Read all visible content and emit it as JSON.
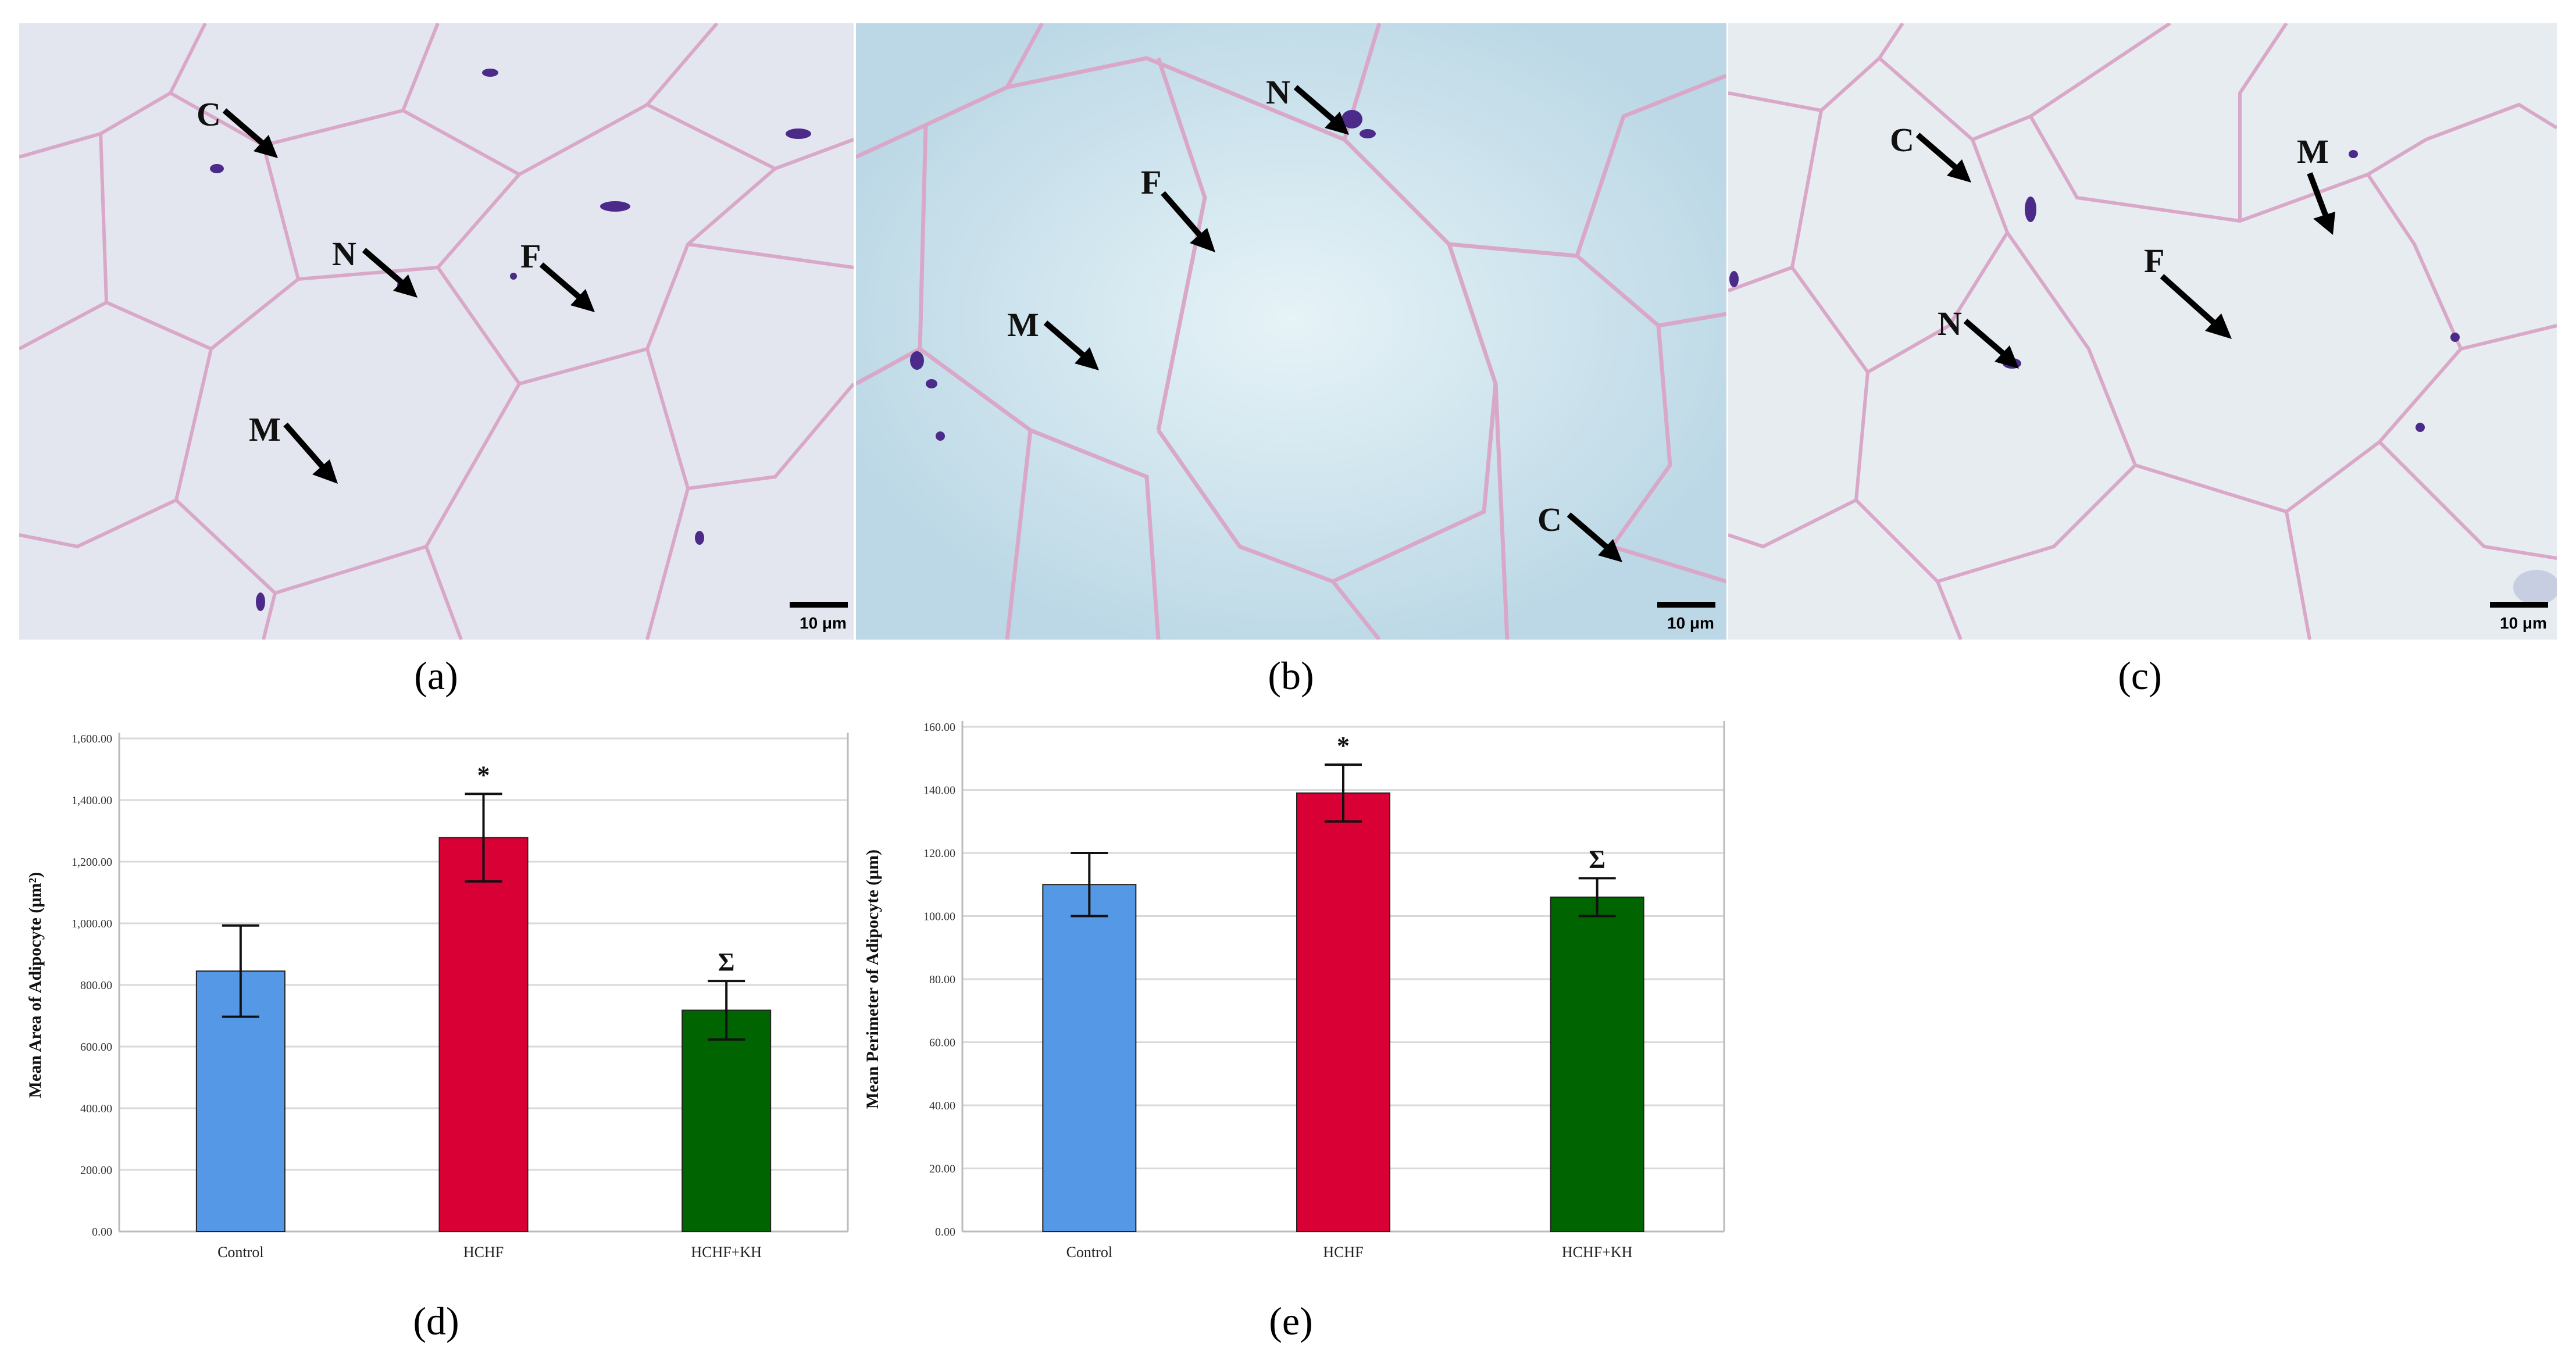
{
  "figure": {
    "panels": [
      {
        "id": "a",
        "caption": "(a)",
        "scale": "10 μm",
        "tint": "#e3e6ee",
        "labels": [
          {
            "id": "C",
            "text": "C"
          },
          {
            "id": "N",
            "text": "N"
          },
          {
            "id": "F",
            "text": "F"
          },
          {
            "id": "M",
            "text": "M"
          }
        ]
      },
      {
        "id": "b",
        "caption": "(b)",
        "scale": "10 μm",
        "tint": "#cfe3ee",
        "labels": [
          {
            "id": "N",
            "text": "N"
          },
          {
            "id": "F",
            "text": "F"
          },
          {
            "id": "M",
            "text": "M"
          },
          {
            "id": "C",
            "text": "C"
          }
        ]
      },
      {
        "id": "c",
        "caption": "(c)",
        "scale": "10 μm",
        "tint": "#e6ecef",
        "labels": [
          {
            "id": "C",
            "text": "C"
          },
          {
            "id": "M",
            "text": "M"
          },
          {
            "id": "F",
            "text": "F"
          },
          {
            "id": "N",
            "text": "N"
          }
        ]
      }
    ],
    "colors": {
      "membrane": "#d9a8c9",
      "nucleus": "#4b2a8a",
      "control": "#5599e6",
      "hchf": "#d90036",
      "hchf_kh": "#006400",
      "grid": "#d9d9d9"
    }
  },
  "chart_data": [
    {
      "id": "d",
      "caption": "(d)",
      "type": "bar",
      "categories": [
        "Control",
        "HCHF",
        "HCHF+KH"
      ],
      "values": [
        845,
        1278,
        718
      ],
      "errors": [
        148,
        142,
        95
      ],
      "markers": [
        "",
        "*",
        "Σ"
      ],
      "ylabel": "Mean Area of Adipocyte (μm²)",
      "ylim": [
        0,
        1600
      ],
      "yticks": [
        "0.00",
        "200.00",
        "400.00",
        "600.00",
        "800.00",
        "1,000.00",
        "1,200.00",
        "1,400.00",
        "1,600.00"
      ],
      "grid": true
    },
    {
      "id": "e",
      "caption": "(e)",
      "type": "bar",
      "categories": [
        "Control",
        "HCHF",
        "HCHF+KH"
      ],
      "values": [
        110,
        139,
        106
      ],
      "errors": [
        10,
        9,
        6
      ],
      "markers": [
        "",
        "*",
        "Σ"
      ],
      "ylabel": "Mean Perimeter of Adipocyte (μm)",
      "ylim": [
        0,
        160
      ],
      "yticks": [
        "0.00",
        "20.00",
        "40.00",
        "60.00",
        "80.00",
        "100.00",
        "120.00",
        "140.00",
        "160.00"
      ],
      "grid": true
    }
  ]
}
